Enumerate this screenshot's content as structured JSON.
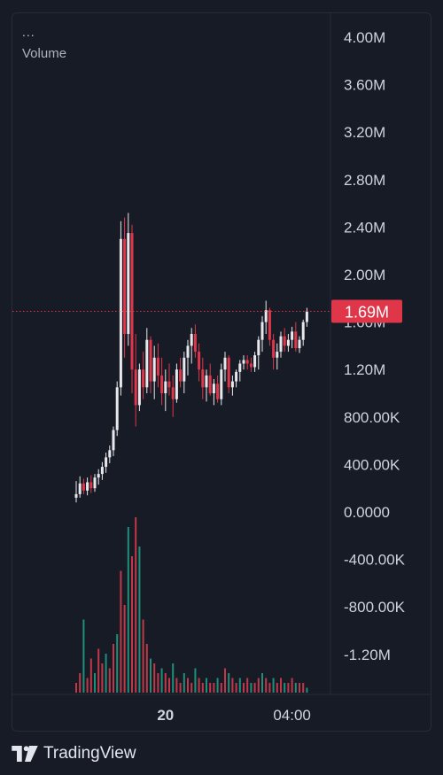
{
  "indicator": {
    "menu": "...",
    "label": "Volume"
  },
  "brand": {
    "name": "TradingView"
  },
  "colors": {
    "up": "#e8e8ec",
    "down": "#e0364a",
    "vol_up": "#1f8f7a",
    "vol_down": "#c23848",
    "grid": "#272c38",
    "price_line": "#e0364a",
    "badge": "#e0364a",
    "axis_text": "#cfd3dc"
  },
  "chart_data": {
    "type": "candlestick",
    "price_label": "1.69M",
    "current_price": 1690000,
    "y_ticks": [
      {
        "value": 4000000,
        "label": "4.00M"
      },
      {
        "value": 3600000,
        "label": "3.60M"
      },
      {
        "value": 3200000,
        "label": "3.20M"
      },
      {
        "value": 2800000,
        "label": "2.80M"
      },
      {
        "value": 2400000,
        "label": "2.40M"
      },
      {
        "value": 2000000,
        "label": "2.00M"
      },
      {
        "value": 1600000,
        "label": "1.60M"
      },
      {
        "value": 1200000,
        "label": "1.20M"
      },
      {
        "value": 800000,
        "label": "800.00K"
      },
      {
        "value": 400000,
        "label": "400.00K"
      },
      {
        "value": 0,
        "label": "0.0000"
      },
      {
        "value": -400000,
        "label": "-400.00K"
      },
      {
        "value": -800000,
        "label": "-800.00K"
      },
      {
        "value": -1200000,
        "label": "-1.20M"
      }
    ],
    "ylim": [
      -1500000,
      4200000
    ],
    "x_ticks": [
      {
        "index": 24,
        "label": "20",
        "bold": true
      },
      {
        "index": 58,
        "label": "04:00",
        "bold": false
      }
    ],
    "candles": [
      [
        120000,
        260000,
        80000,
        150000
      ],
      [
        150000,
        300000,
        120000,
        240000
      ],
      [
        240000,
        280000,
        150000,
        180000
      ],
      [
        180000,
        290000,
        140000,
        250000
      ],
      [
        250000,
        310000,
        160000,
        200000
      ],
      [
        200000,
        320000,
        170000,
        290000
      ],
      [
        290000,
        360000,
        230000,
        320000
      ],
      [
        320000,
        420000,
        270000,
        380000
      ],
      [
        380000,
        500000,
        330000,
        460000
      ],
      [
        460000,
        560000,
        410000,
        520000
      ],
      [
        520000,
        720000,
        470000,
        690000
      ],
      [
        690000,
        1100000,
        640000,
        1050000
      ],
      [
        1050000,
        2450000,
        980000,
        2300000
      ],
      [
        2300000,
        2480000,
        1300000,
        1500000
      ],
      [
        1500000,
        2520000,
        1400000,
        2350000
      ],
      [
        2350000,
        2420000,
        1000000,
        1200000
      ],
      [
        1200000,
        1500000,
        720000,
        900000
      ],
      [
        900000,
        1250000,
        850000,
        1200000
      ],
      [
        1200000,
        1350000,
        950000,
        1050000
      ],
      [
        1050000,
        1550000,
        1000000,
        1450000
      ],
      [
        1450000,
        1480000,
        1000000,
        1100000
      ],
      [
        1100000,
        1400000,
        950000,
        1300000
      ],
      [
        1300000,
        1420000,
        1050000,
        1150000
      ],
      [
        1150000,
        1300000,
        900000,
        1000000
      ],
      [
        1000000,
        1200000,
        850000,
        1100000
      ],
      [
        1100000,
        1250000,
        980000,
        1050000
      ],
      [
        1050000,
        1150000,
        800000,
        950000
      ],
      [
        950000,
        1250000,
        920000,
        1200000
      ],
      [
        1200000,
        1300000,
        1050000,
        1100000
      ],
      [
        1100000,
        1350000,
        1000000,
        1300000
      ],
      [
        1300000,
        1450000,
        1150000,
        1400000
      ],
      [
        1400000,
        1550000,
        1250000,
        1500000
      ],
      [
        1500000,
        1580000,
        1300000,
        1350000
      ],
      [
        1350000,
        1420000,
        1100000,
        1200000
      ],
      [
        1200000,
        1300000,
        950000,
        1050000
      ],
      [
        1050000,
        1200000,
        930000,
        1150000
      ],
      [
        1150000,
        1250000,
        980000,
        1000000
      ],
      [
        1000000,
        1120000,
        900000,
        1080000
      ],
      [
        1080000,
        1150000,
        920000,
        950000
      ],
      [
        950000,
        1250000,
        900000,
        1200000
      ],
      [
        1200000,
        1350000,
        1100000,
        1300000
      ],
      [
        1300000,
        1320000,
        1000000,
        1050000
      ],
      [
        1050000,
        1150000,
        980000,
        1100000
      ],
      [
        1100000,
        1200000,
        1050000,
        1180000
      ],
      [
        1180000,
        1280000,
        1100000,
        1250000
      ],
      [
        1250000,
        1320000,
        1200000,
        1280000
      ],
      [
        1280000,
        1320000,
        1200000,
        1250000
      ],
      [
        1250000,
        1300000,
        1180000,
        1220000
      ],
      [
        1220000,
        1350000,
        1180000,
        1320000
      ],
      [
        1320000,
        1480000,
        1200000,
        1450000
      ],
      [
        1450000,
        1650000,
        1350000,
        1600000
      ],
      [
        1600000,
        1780000,
        1500000,
        1700000
      ],
      [
        1700000,
        1720000,
        1400000,
        1450000
      ],
      [
        1450000,
        1500000,
        1200000,
        1300000
      ],
      [
        1300000,
        1420000,
        1200000,
        1350000
      ],
      [
        1350000,
        1520000,
        1300000,
        1480000
      ],
      [
        1480000,
        1550000,
        1350000,
        1400000
      ],
      [
        1400000,
        1500000,
        1350000,
        1450000
      ],
      [
        1450000,
        1560000,
        1380000,
        1520000
      ],
      [
        1520000,
        1600000,
        1350000,
        1380000
      ],
      [
        1380000,
        1480000,
        1340000,
        1450000
      ],
      [
        1450000,
        1620000,
        1400000,
        1600000
      ],
      [
        1600000,
        1720000,
        1560000,
        1690000
      ]
    ],
    "volume": [
      [
        2,
        false
      ],
      [
        4,
        false
      ],
      [
        15,
        true
      ],
      [
        3,
        false
      ],
      [
        7,
        false
      ],
      [
        4,
        true
      ],
      [
        9,
        false
      ],
      [
        6,
        false
      ],
      [
        8,
        true
      ],
      [
        5,
        false
      ],
      [
        10,
        false
      ],
      [
        12,
        true
      ],
      [
        25,
        false
      ],
      [
        18,
        false
      ],
      [
        34,
        true
      ],
      [
        28,
        false
      ],
      [
        36,
        false
      ],
      [
        30,
        true
      ],
      [
        15,
        false
      ],
      [
        10,
        false
      ],
      [
        7,
        true
      ],
      [
        6,
        false
      ],
      [
        4,
        false
      ],
      [
        5,
        true
      ],
      [
        4,
        false
      ],
      [
        3,
        false
      ],
      [
        6,
        true
      ],
      [
        3,
        false
      ],
      [
        2,
        false
      ],
      [
        4,
        true
      ],
      [
        3,
        false
      ],
      [
        2,
        false
      ],
      [
        5,
        true
      ],
      [
        3,
        false
      ],
      [
        2,
        false
      ],
      [
        3,
        true
      ],
      [
        2,
        false
      ],
      [
        2,
        false
      ],
      [
        3,
        true
      ],
      [
        2,
        false
      ],
      [
        5,
        false
      ],
      [
        4,
        true
      ],
      [
        3,
        false
      ],
      [
        2,
        false
      ],
      [
        3,
        true
      ],
      [
        2,
        false
      ],
      [
        3,
        false
      ],
      [
        2,
        true
      ],
      [
        2,
        false
      ],
      [
        3,
        false
      ],
      [
        4,
        true
      ],
      [
        3,
        false
      ],
      [
        2,
        false
      ],
      [
        3,
        true
      ],
      [
        2,
        false
      ],
      [
        3,
        false
      ],
      [
        2,
        true
      ],
      [
        2,
        false
      ],
      [
        3,
        false
      ],
      [
        2,
        true
      ],
      [
        2,
        false
      ],
      [
        2,
        false
      ],
      [
        1,
        true
      ]
    ]
  }
}
